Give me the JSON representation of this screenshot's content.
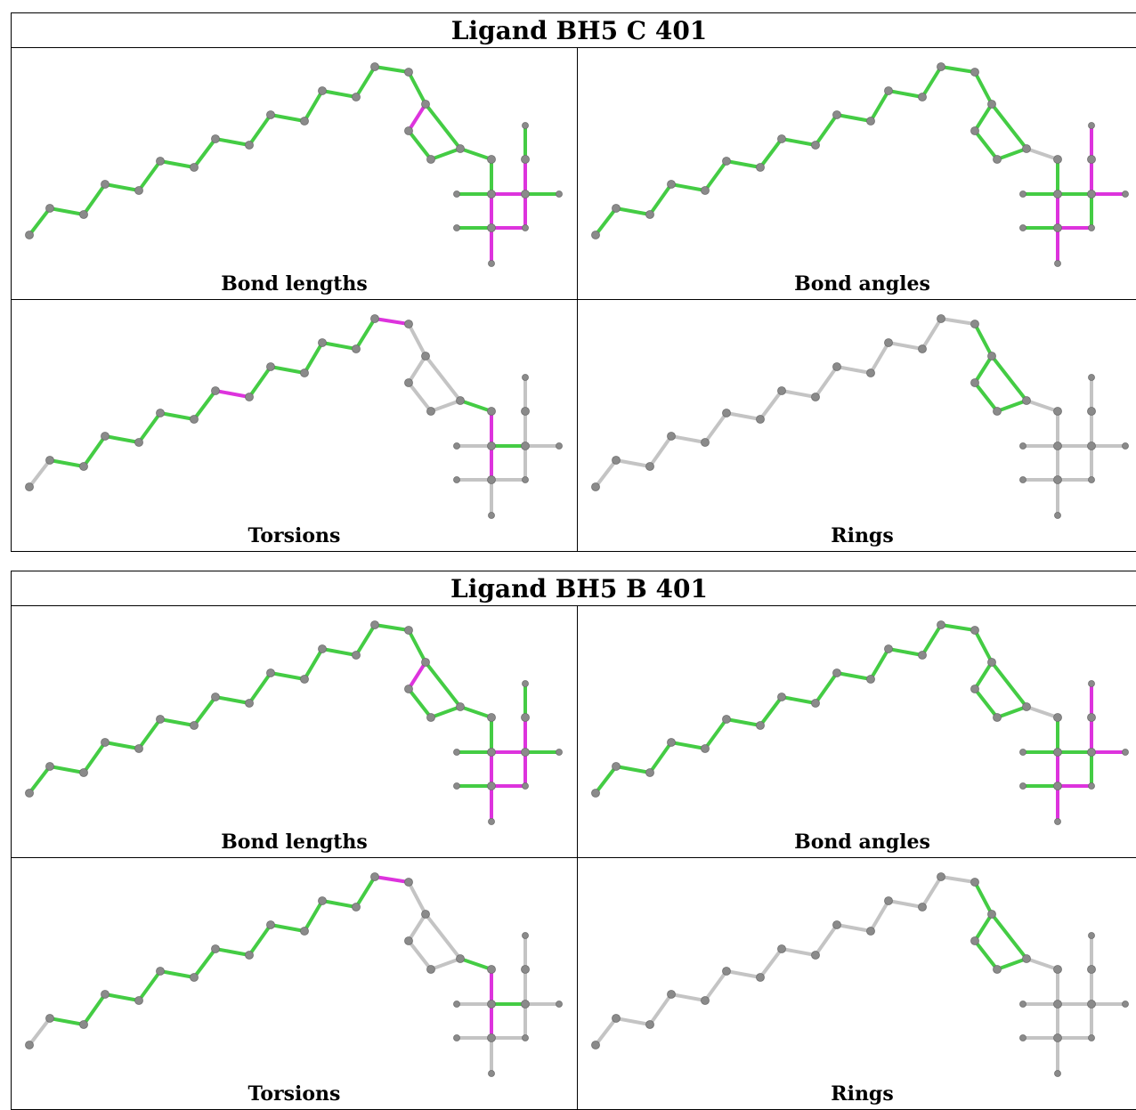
{
  "blocks": [
    {
      "title": "Ligand BH5 C 401",
      "panels": [
        {
          "caption": "Bond lengths",
          "colors": [
            "g",
            "g",
            "g",
            "g",
            "g",
            "g",
            "g",
            "g",
            "g",
            "g",
            "g",
            "g",
            "g",
            "g",
            "g",
            "m",
            "g",
            "g",
            "g",
            "g",
            "g",
            "m",
            "m",
            "g",
            "m",
            "g",
            "g",
            "m",
            "m",
            "g",
            "m"
          ]
        },
        {
          "caption": "Bond angles",
          "colors": [
            "g",
            "g",
            "g",
            "g",
            "g",
            "g",
            "g",
            "g",
            "g",
            "g",
            "g",
            "g",
            "g",
            "g",
            "g",
            "g",
            "g",
            "g",
            "g",
            "s",
            "g",
            "m",
            "g",
            "g",
            "m",
            "m",
            "m",
            "m",
            "g",
            "g",
            "m"
          ]
        },
        {
          "caption": "Torsions",
          "colors": [
            "s",
            "g",
            "g",
            "g",
            "g",
            "g",
            "g",
            "m",
            "g",
            "g",
            "g",
            "g",
            "g",
            "m",
            "s",
            "s",
            "s",
            "s",
            "s",
            "g",
            "m",
            "m",
            "g",
            "s",
            "s",
            "s",
            "s",
            "s",
            "s",
            "s",
            "s"
          ]
        },
        {
          "caption": "Rings",
          "colors": [
            "s",
            "s",
            "s",
            "s",
            "s",
            "s",
            "s",
            "s",
            "s",
            "s",
            "s",
            "s",
            "s",
            "s",
            "g",
            "g",
            "g",
            "g",
            "g",
            "s",
            "s",
            "s",
            "s",
            "s",
            "s",
            "s",
            "s",
            "s",
            "s",
            "s",
            "s"
          ]
        }
      ]
    },
    {
      "title": "Ligand BH5 B 401",
      "panels": [
        {
          "caption": "Bond lengths",
          "colors": [
            "g",
            "g",
            "g",
            "g",
            "g",
            "g",
            "g",
            "g",
            "g",
            "g",
            "g",
            "g",
            "g",
            "g",
            "g",
            "m",
            "g",
            "g",
            "g",
            "g",
            "g",
            "m",
            "m",
            "g",
            "m",
            "g",
            "g",
            "m",
            "m",
            "g",
            "m"
          ]
        },
        {
          "caption": "Bond angles",
          "colors": [
            "g",
            "g",
            "g",
            "g",
            "g",
            "g",
            "g",
            "g",
            "g",
            "g",
            "g",
            "g",
            "g",
            "g",
            "g",
            "g",
            "g",
            "g",
            "g",
            "s",
            "g",
            "m",
            "g",
            "g",
            "m",
            "m",
            "m",
            "m",
            "g",
            "g",
            "m"
          ]
        },
        {
          "caption": "Torsions",
          "colors": [
            "s",
            "g",
            "g",
            "g",
            "g",
            "g",
            "g",
            "g",
            "g",
            "g",
            "g",
            "g",
            "g",
            "m",
            "s",
            "s",
            "s",
            "s",
            "s",
            "g",
            "m",
            "m",
            "g",
            "s",
            "s",
            "s",
            "s",
            "s",
            "s",
            "s",
            "s"
          ]
        },
        {
          "caption": "Rings",
          "colors": [
            "s",
            "s",
            "s",
            "s",
            "s",
            "s",
            "s",
            "s",
            "s",
            "s",
            "s",
            "s",
            "s",
            "s",
            "g",
            "g",
            "g",
            "g",
            "g",
            "s",
            "s",
            "s",
            "s",
            "s",
            "s",
            "s",
            "s",
            "s",
            "s",
            "s",
            "s"
          ]
        }
      ]
    }
  ],
  "palette": {
    "g": "#44cc44",
    "m": "#dd33dd",
    "s": "#c4c4c4",
    "atom": "#8a8a8a"
  }
}
